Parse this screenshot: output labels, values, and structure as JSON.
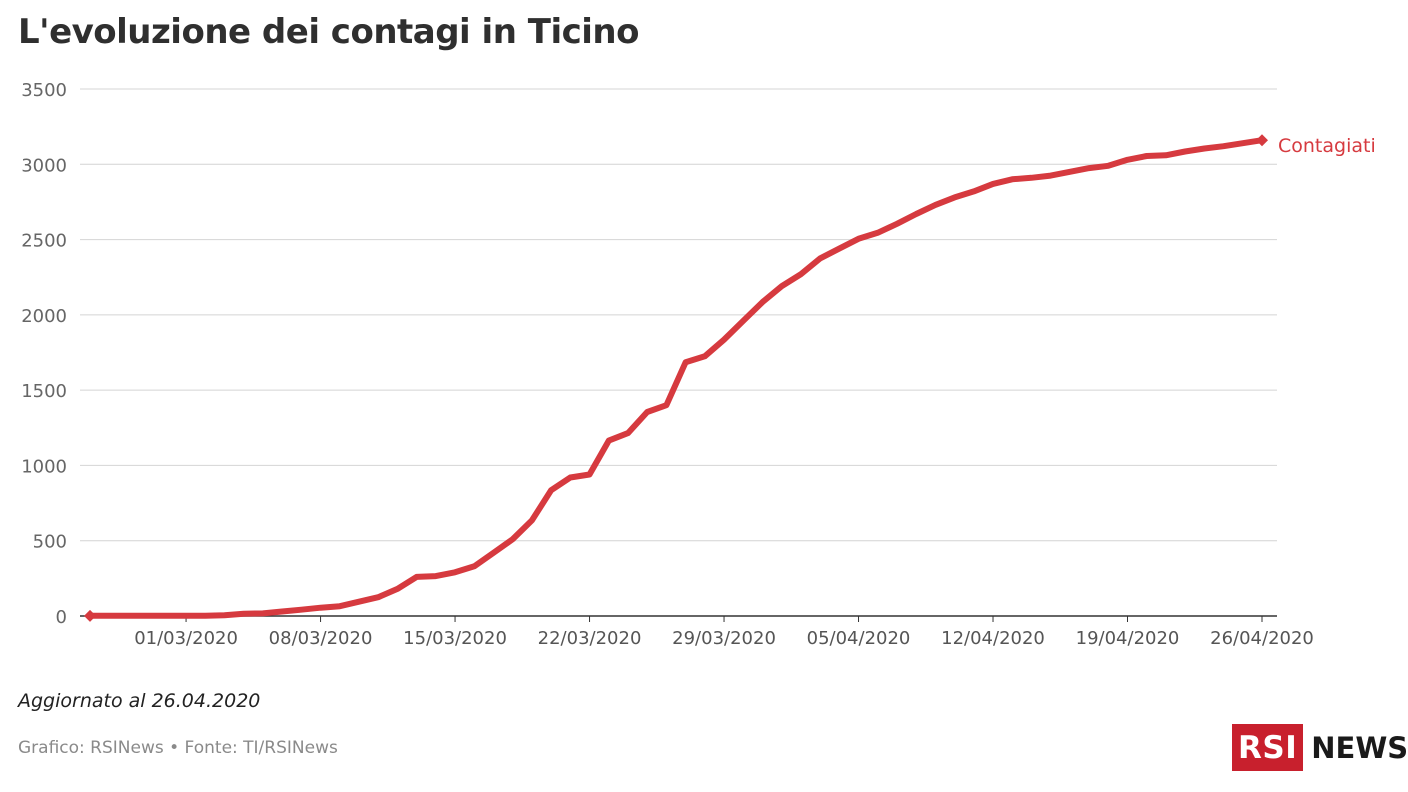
{
  "title": "L'evoluzione dei contagi in Ticino",
  "note": "Aggiornato al 26.04.2020",
  "source": "Grafico: RSINews • Fonte: TI/RSINews",
  "logo": {
    "left": "RSI",
    "right": "NEWS"
  },
  "colors": {
    "line": "#d63a3f",
    "grid": "#d4d4d4",
    "axis": "#333333",
    "tick_text": "#666666",
    "logo_red": "#c8202d"
  },
  "chart_data": {
    "type": "line",
    "title": "L'evoluzione dei contagi in Ticino",
    "xlabel": "",
    "ylabel": "",
    "ylim": [
      0,
      3500
    ],
    "xlim": [
      "2020-02-25",
      "2020-04-26"
    ],
    "yticks": [
      0,
      500,
      1000,
      1500,
      2000,
      2500,
      3000,
      3500
    ],
    "xticks": [
      {
        "date": "2020-03-01",
        "label": "01/03/2020"
      },
      {
        "date": "2020-03-08",
        "label": "08/03/2020"
      },
      {
        "date": "2020-03-15",
        "label": "15/03/2020"
      },
      {
        "date": "2020-03-22",
        "label": "22/03/2020"
      },
      {
        "date": "2020-03-29",
        "label": "29/03/2020"
      },
      {
        "date": "2020-04-05",
        "label": "05/04/2020"
      },
      {
        "date": "2020-04-12",
        "label": "12/04/2020"
      },
      {
        "date": "2020-04-19",
        "label": "19/04/2020"
      },
      {
        "date": "2020-04-26",
        "label": "26/04/2020"
      }
    ],
    "grid": true,
    "series": [
      {
        "name": "Contagiati",
        "x": [
          "2020-02-25",
          "2020-02-26",
          "2020-02-27",
          "2020-02-28",
          "2020-02-29",
          "2020-03-01",
          "2020-03-02",
          "2020-03-03",
          "2020-03-04",
          "2020-03-05",
          "2020-03-06",
          "2020-03-07",
          "2020-03-08",
          "2020-03-09",
          "2020-03-10",
          "2020-03-11",
          "2020-03-12",
          "2020-03-13",
          "2020-03-14",
          "2020-03-15",
          "2020-03-16",
          "2020-03-17",
          "2020-03-18",
          "2020-03-19",
          "2020-03-20",
          "2020-03-21",
          "2020-03-22",
          "2020-03-23",
          "2020-03-24",
          "2020-03-25",
          "2020-03-26",
          "2020-03-27",
          "2020-03-28",
          "2020-03-29",
          "2020-03-30",
          "2020-03-31",
          "2020-04-01",
          "2020-04-02",
          "2020-04-03",
          "2020-04-04",
          "2020-04-05",
          "2020-04-06",
          "2020-04-07",
          "2020-04-08",
          "2020-04-09",
          "2020-04-10",
          "2020-04-11",
          "2020-04-12",
          "2020-04-13",
          "2020-04-14",
          "2020-04-15",
          "2020-04-16",
          "2020-04-17",
          "2020-04-18",
          "2020-04-19",
          "2020-04-20",
          "2020-04-21",
          "2020-04-22",
          "2020-04-23",
          "2020-04-24",
          "2020-04-25",
          "2020-04-26"
        ],
        "y": [
          1,
          1,
          1,
          1,
          1,
          1,
          1,
          5,
          15,
          17,
          30,
          42,
          55,
          65,
          95,
          125,
          180,
          260,
          265,
          290,
          330,
          420,
          510,
          635,
          835,
          920,
          940,
          1165,
          1215,
          1355,
          1400,
          1685,
          1725,
          1835,
          1960,
          2085,
          2190,
          2270,
          2375,
          2440,
          2505,
          2545,
          2605,
          2670,
          2730,
          2780,
          2820,
          2870,
          2900,
          2910,
          2925,
          2950,
          2975,
          2990,
          3030,
          3055,
          3060,
          3085,
          3105,
          3120,
          3140,
          3160
        ]
      }
    ],
    "legend": "end-of-line"
  }
}
